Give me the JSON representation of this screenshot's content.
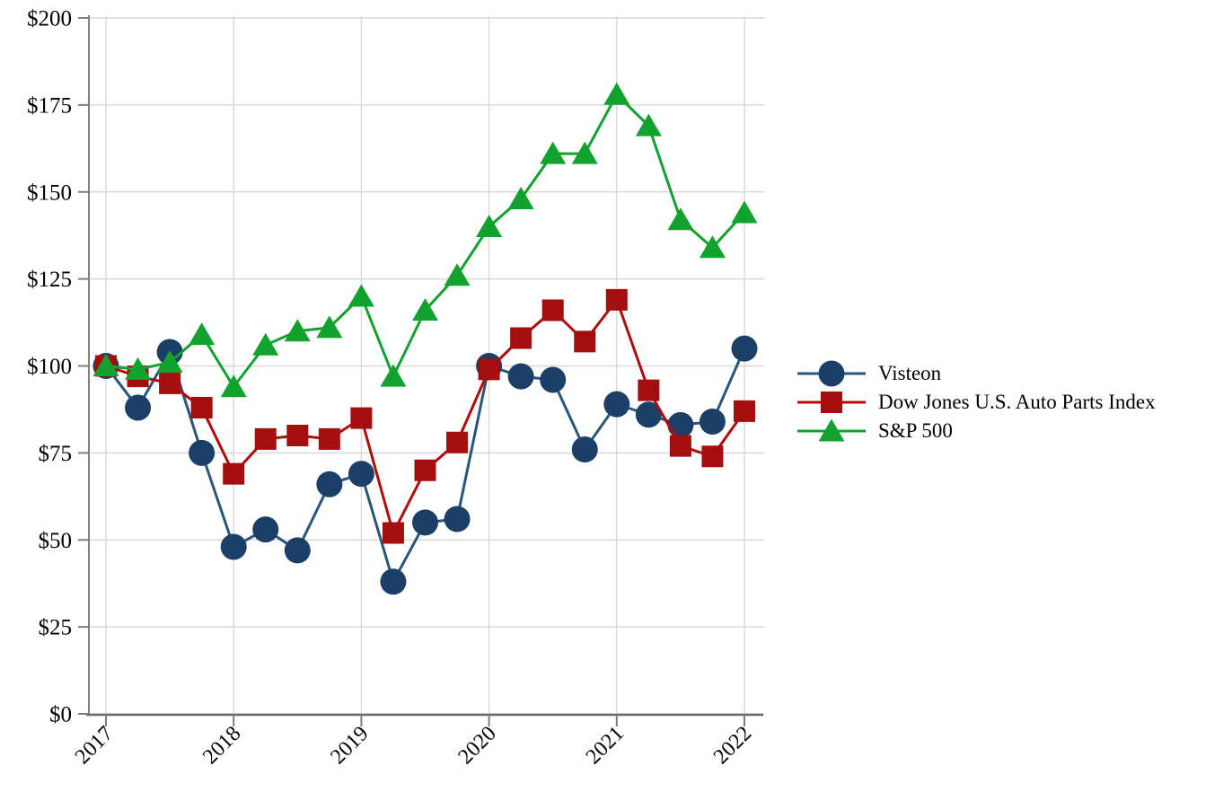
{
  "chart_data": {
    "type": "line",
    "title": "",
    "xlabel": "",
    "ylabel": "",
    "x_unit": "quarterly",
    "points_per_year": 4,
    "x_tick_labels": [
      "2017",
      "2018",
      "2019",
      "2020",
      "2021",
      "2022"
    ],
    "x_tick_point_indices": [
      0,
      4,
      8,
      12,
      16,
      20
    ],
    "y_tick_labels": [
      "$0",
      "$25",
      "$50",
      "$75",
      "$100",
      "$125",
      "$150",
      "$175",
      "$200"
    ],
    "y_min": 0,
    "y_max": 200,
    "y_step": 25,
    "grid": true,
    "legend_position": "right-of-plot",
    "series": [
      {
        "name": "Visteon",
        "marker": "circle",
        "marker_color": "#1B3F66",
        "line_color": "#28567E",
        "values": [
          100,
          88,
          104,
          75,
          48,
          53,
          47,
          66,
          69,
          38,
          55,
          56,
          100,
          97,
          96,
          76,
          89,
          86,
          83,
          84,
          105
        ]
      },
      {
        "name": "Dow Jones U.S. Auto Parts Index",
        "marker": "square",
        "marker_color": "#A40E0E",
        "line_color": "#B40A0A",
        "values": [
          100,
          97,
          95,
          88,
          69,
          79,
          80,
          79,
          85,
          52,
          70,
          78,
          99,
          108,
          116,
          107,
          119,
          93,
          77,
          74,
          87
        ]
      },
      {
        "name": "S&P 500",
        "marker": "triangle",
        "marker_color": "#12A22E",
        "line_color": "#12A22E",
        "values": [
          100,
          99,
          101,
          109,
          94,
          106,
          110,
          111,
          120,
          97,
          116,
          126,
          140,
          148,
          161,
          161,
          178,
          169,
          142,
          134,
          144
        ]
      }
    ],
    "colors": {
      "background": "#FFFFFF",
      "gridline": "#D9D9D9",
      "axis_line": "#7F7F7F",
      "bottom_axis_line": "#6B6B6B",
      "tick": "#7F7F7F",
      "label_text": "#000000"
    }
  }
}
